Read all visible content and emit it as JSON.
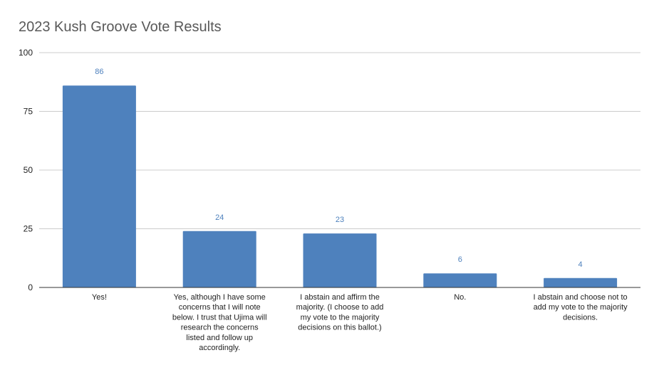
{
  "chart_data": {
    "type": "bar",
    "title": "2023 Kush Groove Vote Results",
    "xlabel": "",
    "ylabel": "",
    "categories": [
      [
        "Yes!"
      ],
      [
        "Yes, although I have some",
        "concerns that I will note",
        "below. I trust that Ujima will",
        "research the concerns",
        "listed and follow up",
        "accordingly."
      ],
      [
        "I abstain and affirm the",
        "majority. (I choose to add",
        "my vote to the majority",
        "decisions on this ballot.)"
      ],
      [
        "No."
      ],
      [
        "I abstain and choose not to",
        "add my vote to the majority",
        "decisions."
      ]
    ],
    "values": [
      86,
      24,
      23,
      6,
      4
    ],
    "data_labels": [
      "86",
      "24",
      "23",
      "6",
      "4"
    ],
    "ylim": [
      0,
      100
    ],
    "yticks": [
      "0",
      "25",
      "50",
      "75",
      "100"
    ],
    "grid": true,
    "legend": "none",
    "colors": {
      "bar": "#4e81bd",
      "data_label": "#4e81bd",
      "gridline": "#cccccc",
      "axis_line": "#333333",
      "tick_text": "#222222",
      "title": "#595959"
    }
  }
}
